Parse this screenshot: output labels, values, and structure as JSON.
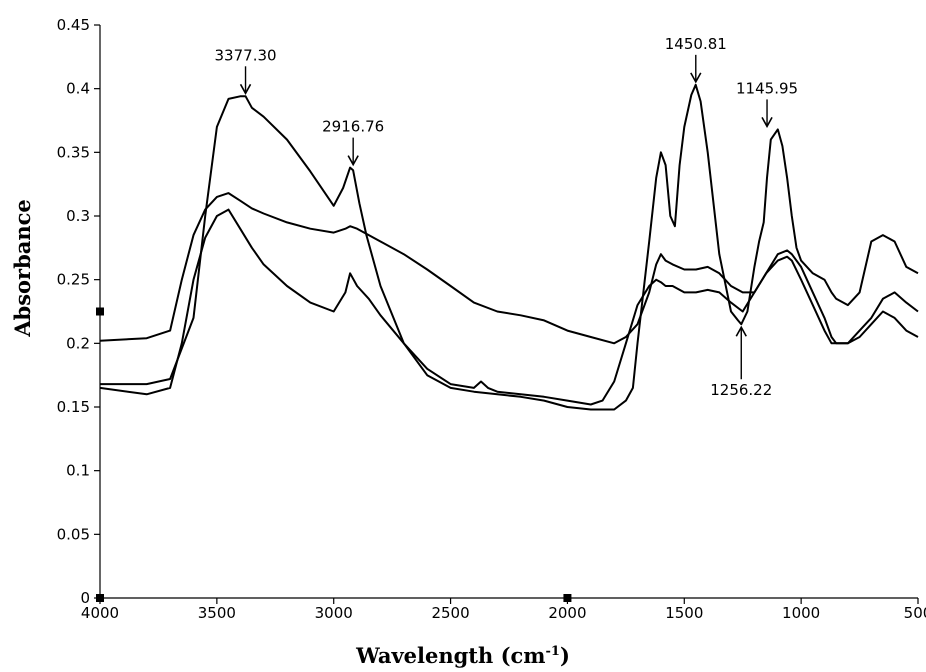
{
  "chart_data": {
    "type": "line",
    "title": "",
    "xlabel": "Wavelength (cm",
    "xlabel_sup": "-1",
    "xlabel_end": ")",
    "ylabel": "Absorbance",
    "xlim": [
      4000,
      500
    ],
    "ylim": [
      0,
      0.45
    ],
    "x_ticks": [
      4000,
      3500,
      3000,
      2500,
      2000,
      1500,
      1000,
      500
    ],
    "x_tick_labels": [
      "4000",
      "3500",
      "3000",
      "2500",
      "2000",
      "1500",
      "1000",
      "500"
    ],
    "y_ticks": [
      0,
      0.05,
      0.1,
      0.15,
      0.2,
      0.25,
      0.3,
      0.35,
      0.4,
      0.45
    ],
    "y_tick_labels": [
      "0",
      "0.05",
      "0.1",
      "0.15",
      "0.2",
      "0.25",
      "0.3",
      "0.35",
      "0.4",
      "0.45"
    ],
    "grid": false,
    "series": [
      {
        "x": [
          4000,
          3800,
          3700,
          3600,
          3550,
          3500,
          3450,
          3400,
          3377,
          3350,
          3300,
          3200,
          3100,
          3000,
          2960,
          2930,
          2917,
          2890,
          2860,
          2800,
          2700,
          2600,
          2500,
          2400,
          2300,
          2200,
          2100,
          2000,
          1900,
          1800,
          1750,
          1720,
          1700,
          1650,
          1620,
          1600,
          1580,
          1560,
          1540,
          1520,
          1500,
          1470,
          1451,
          1430,
          1400,
          1350,
          1300,
          1270,
          1256,
          1230,
          1200,
          1180,
          1160,
          1146,
          1130,
          1100,
          1080,
          1060,
          1040,
          1020,
          1000,
          950,
          900,
          870,
          850,
          800,
          750,
          700,
          650,
          600,
          550,
          500
        ],
        "y": [
          0.168,
          0.168,
          0.172,
          0.22,
          0.3,
          0.37,
          0.392,
          0.394,
          0.394,
          0.385,
          0.378,
          0.36,
          0.335,
          0.308,
          0.322,
          0.338,
          0.336,
          0.31,
          0.285,
          0.245,
          0.2,
          0.175,
          0.165,
          0.162,
          0.16,
          0.158,
          0.155,
          0.15,
          0.148,
          0.148,
          0.155,
          0.165,
          0.2,
          0.28,
          0.33,
          0.35,
          0.34,
          0.3,
          0.292,
          0.34,
          0.37,
          0.395,
          0.403,
          0.39,
          0.35,
          0.27,
          0.225,
          0.218,
          0.215,
          0.225,
          0.26,
          0.28,
          0.295,
          0.33,
          0.36,
          0.368,
          0.355,
          0.33,
          0.3,
          0.275,
          0.265,
          0.255,
          0.25,
          0.24,
          0.235,
          0.23,
          0.24,
          0.28,
          0.285,
          0.28,
          0.26,
          0.255
        ]
      },
      {
        "x": [
          4000,
          3800,
          3700,
          3650,
          3600,
          3550,
          3500,
          3450,
          3400,
          3350,
          3300,
          3200,
          3100,
          3000,
          2950,
          2930,
          2900,
          2850,
          2800,
          2700,
          2600,
          2500,
          2400,
          2300,
          2200,
          2100,
          2000,
          1900,
          1800,
          1750,
          1700,
          1650,
          1620,
          1600,
          1580,
          1550,
          1500,
          1450,
          1400,
          1350,
          1300,
          1250,
          1200,
          1150,
          1100,
          1060,
          1040,
          1000,
          950,
          900,
          870,
          850,
          800,
          750,
          700,
          650,
          600,
          550,
          500
        ],
        "y": [
          0.202,
          0.204,
          0.21,
          0.25,
          0.285,
          0.305,
          0.315,
          0.318,
          0.312,
          0.306,
          0.302,
          0.295,
          0.29,
          0.287,
          0.29,
          0.292,
          0.29,
          0.285,
          0.28,
          0.27,
          0.258,
          0.245,
          0.232,
          0.225,
          0.222,
          0.218,
          0.21,
          0.205,
          0.2,
          0.205,
          0.215,
          0.24,
          0.262,
          0.27,
          0.265,
          0.262,
          0.258,
          0.258,
          0.26,
          0.255,
          0.245,
          0.24,
          0.24,
          0.255,
          0.27,
          0.273,
          0.27,
          0.26,
          0.24,
          0.22,
          0.205,
          0.2,
          0.2,
          0.21,
          0.22,
          0.235,
          0.24,
          0.232,
          0.225
        ]
      },
      {
        "x": [
          4000,
          3800,
          3700,
          3650,
          3600,
          3550,
          3500,
          3450,
          3400,
          3350,
          3300,
          3200,
          3100,
          3000,
          2950,
          2930,
          2900,
          2850,
          2800,
          2700,
          2600,
          2500,
          2400,
          2370,
          2340,
          2300,
          2200,
          2100,
          2000,
          1900,
          1850,
          1800,
          1750,
          1700,
          1650,
          1620,
          1600,
          1580,
          1550,
          1500,
          1450,
          1400,
          1350,
          1300,
          1250,
          1200,
          1150,
          1100,
          1060,
          1040,
          1000,
          950,
          900,
          870,
          850,
          800,
          750,
          700,
          650,
          600,
          550,
          500
        ],
        "y": [
          0.165,
          0.16,
          0.165,
          0.2,
          0.25,
          0.283,
          0.3,
          0.305,
          0.29,
          0.275,
          0.262,
          0.245,
          0.232,
          0.225,
          0.24,
          0.255,
          0.245,
          0.235,
          0.222,
          0.2,
          0.18,
          0.168,
          0.165,
          0.17,
          0.165,
          0.162,
          0.16,
          0.158,
          0.155,
          0.152,
          0.155,
          0.17,
          0.2,
          0.23,
          0.245,
          0.25,
          0.248,
          0.245,
          0.245,
          0.24,
          0.24,
          0.242,
          0.24,
          0.232,
          0.225,
          0.24,
          0.255,
          0.265,
          0.268,
          0.265,
          0.25,
          0.23,
          0.21,
          0.2,
          0.2,
          0.2,
          0.205,
          0.215,
          0.225,
          0.22,
          0.21,
          0.205
        ]
      }
    ],
    "annotations": [
      {
        "label": "3377.30",
        "x": 3377.3,
        "y": 0.394,
        "side": "above"
      },
      {
        "label": "2916.76",
        "x": 2916.76,
        "y": 0.338,
        "side": "above"
      },
      {
        "label": "1450.81",
        "x": 1450.81,
        "y": 0.403,
        "side": "above"
      },
      {
        "label": "1145.95",
        "x": 1145.95,
        "y": 0.368,
        "side": "above"
      },
      {
        "label": "1256.22",
        "x": 1256.22,
        "y": 0.215,
        "side": "below"
      }
    ],
    "markers": [
      {
        "x": 4000,
        "y": 0.225
      },
      {
        "x": 4000,
        "y": 0
      },
      {
        "x": 2000,
        "y": 0
      }
    ]
  }
}
